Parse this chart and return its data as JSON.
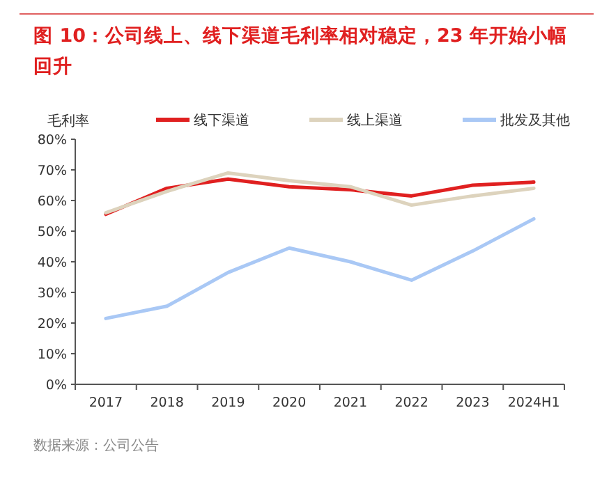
{
  "chart_data": {
    "type": "line",
    "title": "图 10：公司线上、线下渠道毛利率相对稳定，23 年开始小幅回升",
    "ylabel": "毛利率",
    "categories": [
      "2017",
      "2018",
      "2019",
      "2020",
      "2021",
      "2022",
      "2023",
      "2024H1"
    ],
    "series": [
      {
        "name": "线下渠道",
        "color": "#e02020",
        "values": [
          55.5,
          64,
          67,
          64.5,
          63.5,
          61.5,
          65,
          66
        ]
      },
      {
        "name": "线上渠道",
        "color": "#ddd3bd",
        "values": [
          56,
          63,
          69,
          66.5,
          64.5,
          58.5,
          61.5,
          64
        ]
      },
      {
        "name": "批发及其他",
        "color": "#a9c8f5",
        "values": [
          21.5,
          25.5,
          36.5,
          44.5,
          40,
          34,
          43.5,
          54
        ]
      }
    ],
    "ylim": [
      0,
      80
    ],
    "yticks": [
      {
        "value": 0,
        "label": "0%"
      },
      {
        "value": 10,
        "label": "10%"
      },
      {
        "value": 20,
        "label": "20%"
      },
      {
        "value": 30,
        "label": "30%"
      },
      {
        "value": 40,
        "label": "40%"
      },
      {
        "value": 50,
        "label": "50%"
      },
      {
        "value": 60,
        "label": "60%"
      },
      {
        "value": 70,
        "label": "70%"
      },
      {
        "value": 80,
        "label": "80%"
      }
    ],
    "legend": "top",
    "grid": false,
    "marker": "none",
    "line_style": "solid",
    "annotations": [
      "数据来源：公司公告"
    ]
  }
}
